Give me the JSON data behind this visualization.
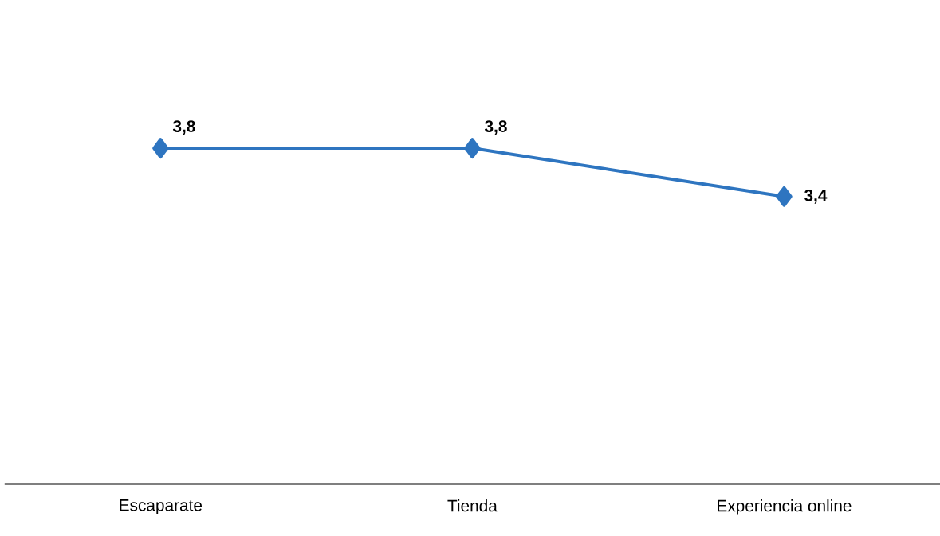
{
  "chart_data": {
    "type": "line",
    "categories": [
      "Escaparate",
      "Tienda",
      "Experiencia online"
    ],
    "values": [
      3.8,
      3.8,
      3.4
    ],
    "value_labels": [
      "3,8",
      "3,8",
      "3,4"
    ],
    "color": "#2e75c0",
    "marker": "diamond",
    "line_style": "solid",
    "tick_labels": "x"
  }
}
